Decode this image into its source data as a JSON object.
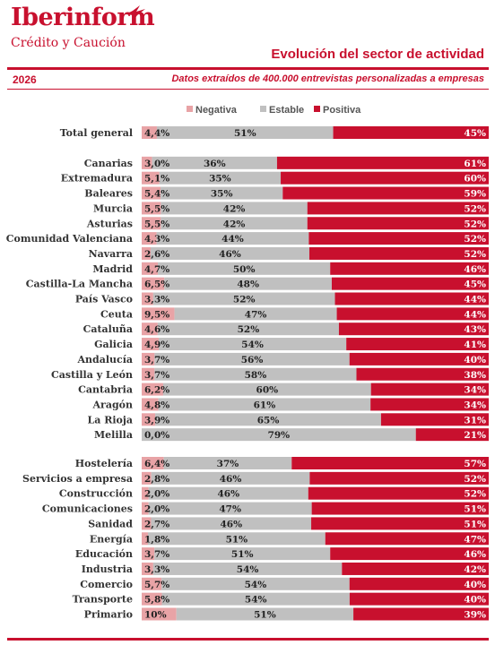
{
  "header": {
    "brand": "Iberinform",
    "brand_sub": "Crédito y Caución",
    "title": "Evolución del sector de actividad",
    "year": "2026",
    "subtitle": "Datos extraídos de 400.000 entrevistas personalizadas a empresas"
  },
  "colors": {
    "negativa": "#e8a3a6",
    "estable": "#c0c0c0",
    "positiva": "#c8102e",
    "accent": "#c8102e"
  },
  "chart_data": {
    "type": "bar",
    "orientation": "horizontal",
    "stacked": true,
    "normalized_percent": true,
    "legend_position": "top-right",
    "series": [
      {
        "name": "Negativa",
        "key": "negativa"
      },
      {
        "name": "Estable",
        "key": "estable"
      },
      {
        "name": "Positiva",
        "key": "positiva"
      }
    ],
    "groups": [
      {
        "rows": [
          {
            "category": "Total general",
            "negativa": "4,4%",
            "estable": "51%",
            "positiva": "45%"
          }
        ]
      },
      {
        "rows": [
          {
            "category": "Canarias",
            "negativa": "3,0%",
            "estable": "36%",
            "positiva": "61%"
          },
          {
            "category": "Extremadura",
            "negativa": "5,1%",
            "estable": "35%",
            "positiva": "60%"
          },
          {
            "category": "Baleares",
            "negativa": "5,4%",
            "estable": "35%",
            "positiva": "59%"
          },
          {
            "category": "Murcia",
            "negativa": "5,5%",
            "estable": "42%",
            "positiva": "52%"
          },
          {
            "category": "Asturias",
            "negativa": "5,5%",
            "estable": "42%",
            "positiva": "52%"
          },
          {
            "category": "Comunidad Valenciana",
            "negativa": "4,3%",
            "estable": "44%",
            "positiva": "52%"
          },
          {
            "category": "Navarra",
            "negativa": "2,6%",
            "estable": "46%",
            "positiva": "52%"
          },
          {
            "category": "Madrid",
            "negativa": "4,7%",
            "estable": "50%",
            "positiva": "46%"
          },
          {
            "category": "Castilla-La Mancha",
            "negativa": "6,5%",
            "estable": "48%",
            "positiva": "45%"
          },
          {
            "category": "País Vasco",
            "negativa": "3,3%",
            "estable": "52%",
            "positiva": "44%"
          },
          {
            "category": "Ceuta",
            "negativa": "9,5%",
            "estable": "47%",
            "positiva": "44%"
          },
          {
            "category": "Cataluña",
            "negativa": "4,6%",
            "estable": "52%",
            "positiva": "43%"
          },
          {
            "category": "Galicia",
            "negativa": "4,9%",
            "estable": "54%",
            "positiva": "41%"
          },
          {
            "category": "Andalucía",
            "negativa": "3,7%",
            "estable": "56%",
            "positiva": "40%"
          },
          {
            "category": "Castilla y León",
            "negativa": "3,7%",
            "estable": "58%",
            "positiva": "38%"
          },
          {
            "category": "Cantabria",
            "negativa": "6,2%",
            "estable": "60%",
            "positiva": "34%"
          },
          {
            "category": "Aragón",
            "negativa": "4,8%",
            "estable": "61%",
            "positiva": "34%"
          },
          {
            "category": "La Rioja",
            "negativa": "3,9%",
            "estable": "65%",
            "positiva": "31%"
          },
          {
            "category": "Melilla",
            "negativa": "0,0%",
            "estable": "79%",
            "positiva": "21%"
          }
        ]
      },
      {
        "rows": [
          {
            "category": "Hostelería",
            "negativa": "6,4%",
            "estable": "37%",
            "positiva": "57%"
          },
          {
            "category": "Servicios a empresa",
            "negativa": "2,8%",
            "estable": "46%",
            "positiva": "52%"
          },
          {
            "category": "Construcción",
            "negativa": "2,0%",
            "estable": "46%",
            "positiva": "52%"
          },
          {
            "category": "Comunicaciones",
            "negativa": "2,0%",
            "estable": "47%",
            "positiva": "51%"
          },
          {
            "category": "Sanidad",
            "negativa": "2,7%",
            "estable": "46%",
            "positiva": "51%"
          },
          {
            "category": "Energía",
            "negativa": "1,8%",
            "estable": "51%",
            "positiva": "47%"
          },
          {
            "category": "Educación",
            "negativa": "3,7%",
            "estable": "51%",
            "positiva": "46%"
          },
          {
            "category": "Industria",
            "negativa": "3,3%",
            "estable": "54%",
            "positiva": "42%"
          },
          {
            "category": "Comercio",
            "negativa": "5,7%",
            "estable": "54%",
            "positiva": "40%"
          },
          {
            "category": "Transporte",
            "negativa": "5,8%",
            "estable": "54%",
            "positiva": "40%"
          },
          {
            "category": "Primario",
            "negativa": "10%",
            "estable": "51%",
            "positiva": "39%"
          }
        ]
      }
    ]
  }
}
